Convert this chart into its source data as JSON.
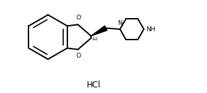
{
  "background_color": "#ffffff",
  "line_color": "#000000",
  "line_width": 1.4,
  "text_color": "#000000",
  "hcl_text": "HCl",
  "stereo_label": "&1",
  "nh_label": "NH",
  "n_label": "N",
  "o_top_label": "O",
  "o_bot_label": "O",
  "figsize": [
    2.98,
    1.34
  ],
  "dpi": 100
}
